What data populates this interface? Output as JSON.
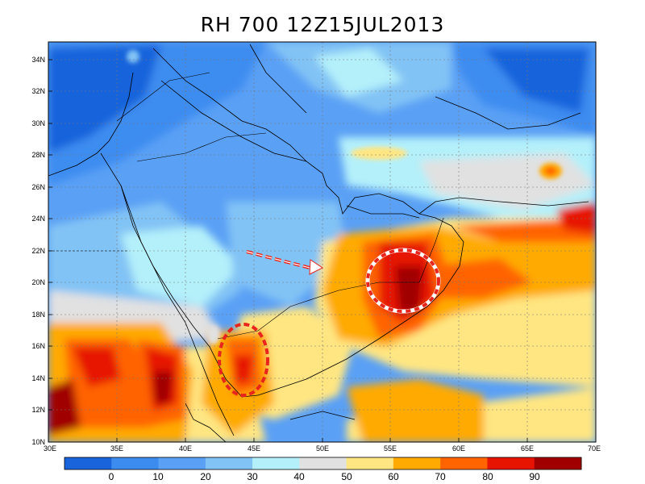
{
  "title": "RH 700 12Z15JUL2013",
  "map": {
    "lat_labels": [
      "34N",
      "32N",
      "30N",
      "28N",
      "26N",
      "24N",
      "22N",
      "20N",
      "18N",
      "16N",
      "14N",
      "12N",
      "10N"
    ],
    "lon_labels": [
      "30E",
      "35E",
      "40E",
      "45E",
      "50E",
      "55E",
      "60E",
      "65E",
      "70E"
    ]
  },
  "colorbar": {
    "labels": [
      "0",
      "10",
      "20",
      "30",
      "40",
      "50",
      "60",
      "70",
      "80",
      "90"
    ],
    "colors": [
      "#1964db",
      "#3c8cf0",
      "#5aa0f5",
      "#82c3f5",
      "#b4f0fa",
      "#e1e1e1",
      "#ffe682",
      "#ffaa00",
      "#ff6400",
      "#e61400",
      "#a00000"
    ]
  },
  "annotations": {
    "arrow_color": "#e8241c",
    "circles": [
      "Yemen highlands RH maximum",
      "Oman / Rub al Khali RH maximum"
    ]
  }
}
